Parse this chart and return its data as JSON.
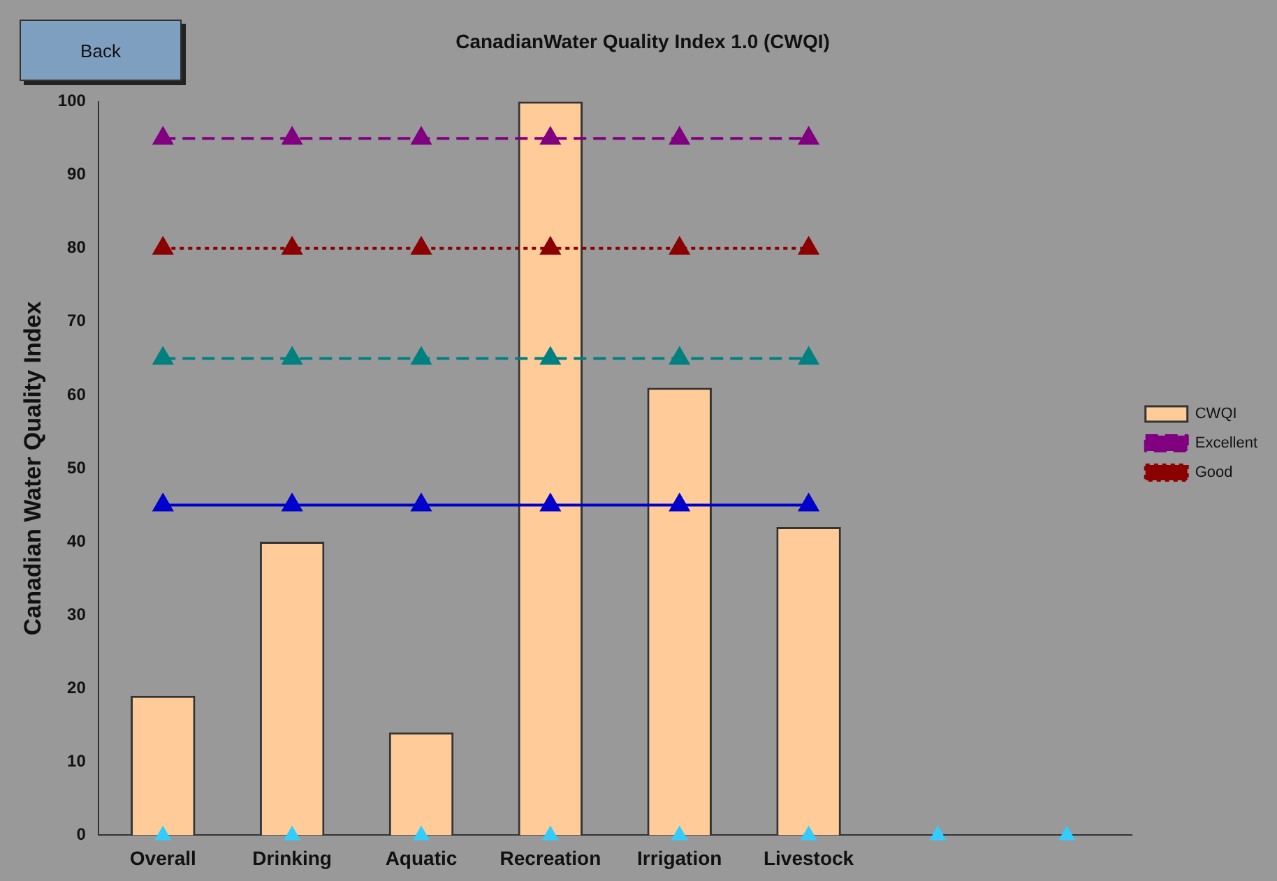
{
  "chart_data": {
    "type": "bar",
    "title": "CanadianWater Quality Index 1.0 (CWQI)",
    "ylabel": "Canadian Water Quality Index",
    "annotations": [
      "Back"
    ],
    "categories": [
      "Overall",
      "Drinking",
      "Aquatic",
      "Recreation",
      "Irrigation",
      "Livestock",
      null,
      null
    ],
    "series": [
      {
        "name": "CWQI",
        "color": "#ffcc99",
        "values": [
          19,
          40,
          14,
          100,
          61,
          42,
          null,
          null
        ]
      },
      {
        "type": "scatter",
        "color": "#33ccff",
        "values": [
          0,
          0,
          0,
          0,
          0,
          0,
          0,
          0
        ]
      },
      {
        "name": "Excellent",
        "type": "line",
        "color": "#800080",
        "values": [
          95,
          95,
          95,
          95,
          95,
          95,
          null,
          null
        ],
        "line_style": "dashed"
      },
      {
        "name": "Good",
        "type": "line",
        "color": "#8b0000",
        "values": [
          80,
          80,
          80,
          80,
          80,
          80,
          null,
          null
        ],
        "line_style": "dotted"
      },
      {
        "type": "line",
        "color": "#008080",
        "values": [
          65,
          65,
          65,
          65,
          65,
          65,
          null,
          null
        ],
        "line_style": "dashed"
      },
      {
        "type": "line",
        "color": "#0000cc",
        "values": [
          45,
          45,
          45,
          45,
          45,
          45,
          null,
          null
        ],
        "line_style": "solid"
      }
    ],
    "ylim": [
      0,
      100
    ],
    "yticks": [
      0,
      10,
      20,
      30,
      40,
      50,
      60,
      70,
      80,
      90,
      100
    ],
    "grid": false,
    "legend": "right",
    "marker": "triangle"
  }
}
